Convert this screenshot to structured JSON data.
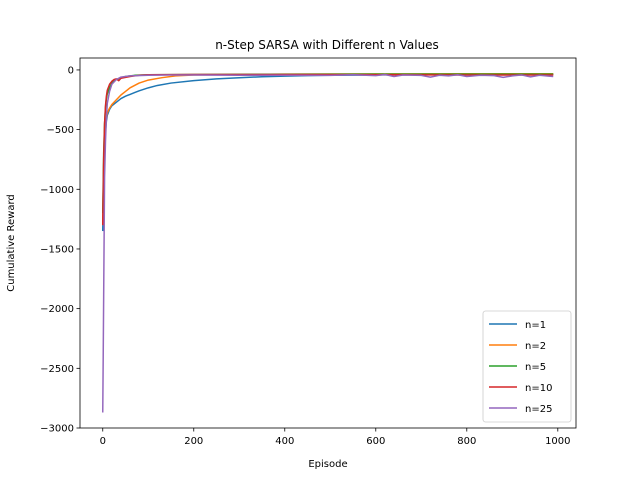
{
  "chart_data": {
    "type": "line",
    "title": "n-Step SARSA with Different n Values",
    "xlabel": "Episode",
    "ylabel": "Cumulative Reward",
    "xlim": [
      -50,
      1040
    ],
    "ylim": [
      -3000,
      100
    ],
    "x_ticks": [
      0,
      200,
      400,
      600,
      800,
      1000
    ],
    "y_ticks": [
      0,
      -500,
      -1000,
      -1500,
      -2000,
      -2500,
      -3000
    ],
    "grid": false,
    "legend_position": "lower-right",
    "series": [
      {
        "name": "n=1",
        "color": "#1f77b4",
        "points": [
          [
            0,
            -1350
          ],
          [
            2,
            -900
          ],
          [
            4,
            -650
          ],
          [
            6,
            -520
          ],
          [
            8,
            -430
          ],
          [
            10,
            -380
          ],
          [
            15,
            -330
          ],
          [
            20,
            -300
          ],
          [
            30,
            -270
          ],
          [
            40,
            -240
          ],
          [
            50,
            -220
          ],
          [
            60,
            -205
          ],
          [
            70,
            -190
          ],
          [
            80,
            -175
          ],
          [
            100,
            -150
          ],
          [
            120,
            -130
          ],
          [
            150,
            -110
          ],
          [
            200,
            -90
          ],
          [
            250,
            -75
          ],
          [
            300,
            -65
          ],
          [
            350,
            -57
          ],
          [
            400,
            -52
          ],
          [
            450,
            -48
          ],
          [
            500,
            -45
          ],
          [
            600,
            -42
          ],
          [
            700,
            -40
          ],
          [
            800,
            -38
          ],
          [
            900,
            -38
          ],
          [
            990,
            -37
          ]
        ]
      },
      {
        "name": "n=2",
        "color": "#ff7f0e",
        "points": [
          [
            0,
            -1300
          ],
          [
            2,
            -800
          ],
          [
            4,
            -550
          ],
          [
            6,
            -450
          ],
          [
            8,
            -400
          ],
          [
            10,
            -360
          ],
          [
            15,
            -320
          ],
          [
            20,
            -290
          ],
          [
            30,
            -250
          ],
          [
            40,
            -210
          ],
          [
            50,
            -180
          ],
          [
            60,
            -150
          ],
          [
            80,
            -110
          ],
          [
            100,
            -85
          ],
          [
            130,
            -65
          ],
          [
            160,
            -50
          ],
          [
            200,
            -42
          ],
          [
            300,
            -38
          ],
          [
            400,
            -35
          ],
          [
            600,
            -33
          ],
          [
            800,
            -32
          ],
          [
            990,
            -32
          ]
        ]
      },
      {
        "name": "n=5",
        "color": "#2ca02c",
        "points": [
          [
            0,
            -1200
          ],
          [
            2,
            -700
          ],
          [
            4,
            -450
          ],
          [
            6,
            -320
          ],
          [
            8,
            -240
          ],
          [
            10,
            -200
          ],
          [
            15,
            -150
          ],
          [
            20,
            -110
          ],
          [
            25,
            -90
          ],
          [
            30,
            -80
          ],
          [
            40,
            -65
          ],
          [
            50,
            -55
          ],
          [
            70,
            -45
          ],
          [
            100,
            -40
          ],
          [
            200,
            -38
          ],
          [
            400,
            -36
          ],
          [
            600,
            -35
          ],
          [
            800,
            -35
          ],
          [
            990,
            -35
          ]
        ]
      },
      {
        "name": "n=10",
        "color": "#d62728",
        "points": [
          [
            0,
            -1300
          ],
          [
            2,
            -750
          ],
          [
            4,
            -450
          ],
          [
            6,
            -300
          ],
          [
            8,
            -220
          ],
          [
            10,
            -170
          ],
          [
            15,
            -120
          ],
          [
            20,
            -95
          ],
          [
            25,
            -80
          ],
          [
            30,
            -75
          ],
          [
            35,
            -90
          ],
          [
            40,
            -70
          ],
          [
            50,
            -62
          ],
          [
            60,
            -55
          ],
          [
            80,
            -45
          ],
          [
            100,
            -40
          ],
          [
            200,
            -38
          ],
          [
            400,
            -38
          ],
          [
            600,
            -40
          ],
          [
            800,
            -42
          ],
          [
            990,
            -42
          ]
        ]
      },
      {
        "name": "n=25",
        "color": "#9467bd",
        "points": [
          [
            0,
            -2870
          ],
          [
            1,
            -2400
          ],
          [
            2,
            -1900
          ],
          [
            3,
            -1400
          ],
          [
            4,
            -900
          ],
          [
            6,
            -600
          ],
          [
            8,
            -400
          ],
          [
            10,
            -280
          ],
          [
            15,
            -180
          ],
          [
            20,
            -120
          ],
          [
            30,
            -80
          ],
          [
            40,
            -60
          ],
          [
            60,
            -50
          ],
          [
            100,
            -45
          ],
          [
            150,
            -42
          ],
          [
            200,
            -42
          ],
          [
            300,
            -44
          ],
          [
            400,
            -45
          ],
          [
            500,
            -46
          ],
          [
            550,
            -40
          ],
          [
            600,
            -48
          ],
          [
            620,
            -38
          ],
          [
            640,
            -55
          ],
          [
            660,
            -42
          ],
          [
            700,
            -46
          ],
          [
            720,
            -60
          ],
          [
            740,
            -45
          ],
          [
            760,
            -50
          ],
          [
            780,
            -40
          ],
          [
            800,
            -55
          ],
          [
            830,
            -45
          ],
          [
            860,
            -48
          ],
          [
            880,
            -62
          ],
          [
            900,
            -50
          ],
          [
            920,
            -42
          ],
          [
            940,
            -58
          ],
          [
            960,
            -45
          ],
          [
            980,
            -52
          ],
          [
            990,
            -55
          ]
        ]
      }
    ]
  }
}
